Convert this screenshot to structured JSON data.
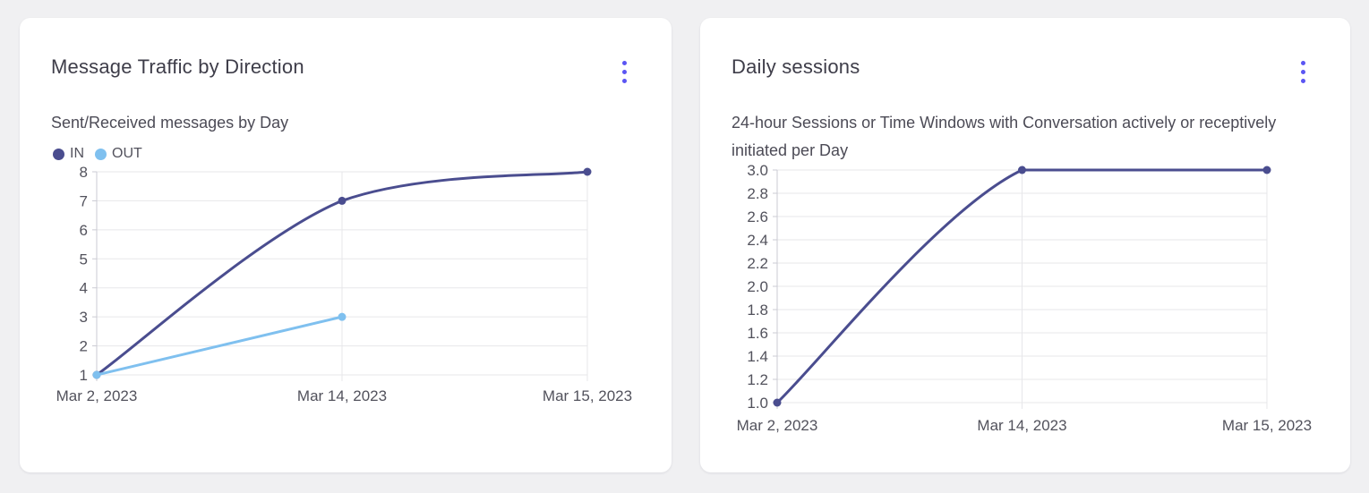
{
  "colors": {
    "page_background": "#f0f0f2",
    "card_background": "#ffffff",
    "menu_accent": "#5b55f3",
    "grid_line": "#e7e7ea",
    "axis_line": "#cbcbd3",
    "axis_text": "#52525c",
    "title_text": "#3e3d49",
    "subtitle_text": "#4c4b56",
    "series_in": "#4a4d8f",
    "series_out": "#7fc0ef"
  },
  "icons": [
    {
      "name": "kebab-menu-icon",
      "meaning": "card options menu (three vertical dots)"
    },
    {
      "name": "legend-dot-in-icon",
      "meaning": "IN series color swatch"
    },
    {
      "name": "legend-dot-out-icon",
      "meaning": "OUT series color swatch"
    }
  ],
  "chart_data": [
    {
      "type": "line",
      "title": "Message Traffic by Direction",
      "subtitle": "Sent/Received messages by Day",
      "xlabel": "",
      "ylabel": "",
      "categories": [
        "Mar 2, 2023",
        "Mar 14, 2023",
        "Mar 15, 2023"
      ],
      "series": [
        {
          "name": "IN",
          "color": "#4a4d8f",
          "values": [
            1,
            7,
            8
          ]
        },
        {
          "name": "OUT",
          "color": "#7fc0ef",
          "values": [
            1,
            3,
            null
          ]
        }
      ],
      "ylim": [
        1,
        8
      ],
      "yticks": [
        1,
        2,
        3,
        4,
        5,
        6,
        7,
        8
      ],
      "ytick_labels": [
        "1",
        "2",
        "3",
        "4",
        "5",
        "6",
        "7",
        "8"
      ],
      "legend": {
        "visible": true,
        "position": "top-left",
        "entries": [
          "IN",
          "OUT"
        ]
      },
      "grid": true,
      "curve": "smooth"
    },
    {
      "type": "line",
      "title": "Daily sessions",
      "subtitle": "24-hour Sessions or Time Windows with Conversation actively or receptively initiated per Day",
      "xlabel": "",
      "ylabel": "",
      "categories": [
        "Mar 2, 2023",
        "Mar 14, 2023",
        "Mar 15, 2023"
      ],
      "series": [
        {
          "name": "Daily sessions",
          "color": "#4a4d8f",
          "values": [
            1,
            3,
            3
          ]
        }
      ],
      "ylim": [
        1,
        3
      ],
      "yticks": [
        1,
        1.2,
        1.4,
        1.6,
        1.8,
        2,
        2.2,
        2.4,
        2.6,
        2.8,
        3
      ],
      "ytick_labels": [
        "1.0",
        "1.2",
        "1.4",
        "1.6",
        "1.8",
        "2.0",
        "2.2",
        "2.4",
        "2.6",
        "2.8",
        "3.0"
      ],
      "legend": {
        "visible": false
      },
      "grid": true,
      "curve": "smooth"
    }
  ]
}
